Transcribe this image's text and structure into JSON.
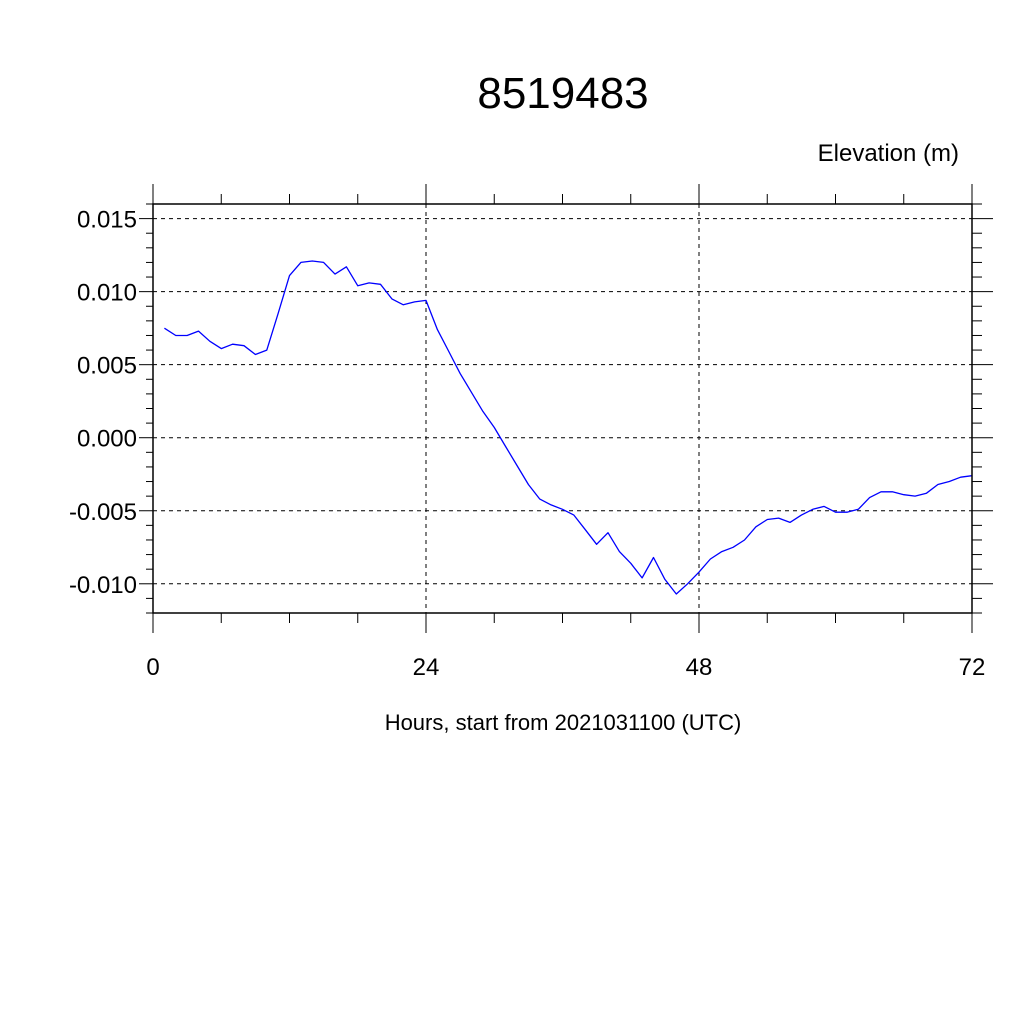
{
  "chart_data": {
    "type": "line",
    "title": "8519483",
    "ylabel": "Elevation (m)",
    "xlabel": "Hours, start from 2021031100 (UTC)",
    "xlim": [
      0,
      72
    ],
    "ylim": [
      -0.012,
      0.016
    ],
    "x_ticks": [
      0,
      24,
      48,
      72
    ],
    "x_tick_labels": [
      "0",
      "24",
      "48",
      "72"
    ],
    "y_ticks": [
      -0.01,
      -0.005,
      0.0,
      0.005,
      0.01,
      0.015
    ],
    "y_tick_labels": [
      "-0.010",
      "-0.005",
      "0.000",
      "0.005",
      "0.010",
      "0.015"
    ],
    "grid": true,
    "line_color": "#0000ff",
    "series": [
      {
        "x": [
          1,
          2,
          3,
          4,
          5,
          6,
          7,
          8,
          9,
          10,
          11,
          12,
          13,
          14,
          15,
          16,
          17,
          18,
          19,
          20,
          21,
          22,
          23,
          24,
          25,
          26,
          27,
          28,
          29,
          30,
          31,
          32,
          33,
          34,
          35,
          36,
          37,
          38,
          39,
          40,
          41,
          42,
          43,
          44,
          45,
          46,
          47,
          48,
          49,
          50,
          51,
          52,
          53,
          54,
          55,
          56,
          57,
          58,
          59,
          60,
          61,
          62,
          63,
          64,
          65,
          66,
          67,
          68,
          69,
          70,
          71,
          72
        ],
        "values": [
          0.0075,
          0.007,
          0.007,
          0.0073,
          0.0066,
          0.0061,
          0.0064,
          0.0063,
          0.0057,
          0.006,
          0.0085,
          0.0111,
          0.012,
          0.0121,
          0.012,
          0.0112,
          0.0117,
          0.0104,
          0.0106,
          0.0105,
          0.0095,
          0.0091,
          0.0093,
          0.0094,
          0.0074,
          0.0059,
          0.0044,
          0.0031,
          0.0018,
          0.0007,
          -0.0006,
          -0.0019,
          -0.0032,
          -0.0042,
          -0.0046,
          -0.0049,
          -0.0053,
          -0.0063,
          -0.0073,
          -0.0065,
          -0.0078,
          -0.0086,
          -0.0096,
          -0.0082,
          -0.0097,
          -0.0107,
          -0.01,
          -0.0092,
          -0.0083,
          -0.0078,
          -0.0075,
          -0.007,
          -0.0061,
          -0.0056,
          -0.0055,
          -0.0058,
          -0.0053,
          -0.0049,
          -0.0047,
          -0.0051,
          -0.0051,
          -0.0049,
          -0.0041,
          -0.0037,
          -0.0037,
          -0.0039,
          -0.004,
          -0.0038,
          -0.0032,
          -0.003,
          -0.0027,
          -0.0026
        ]
      }
    ]
  }
}
